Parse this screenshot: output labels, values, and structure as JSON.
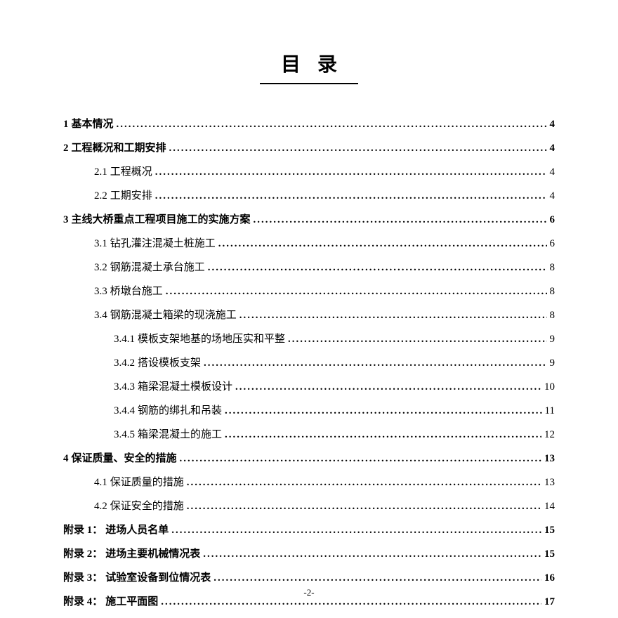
{
  "title": "目录",
  "pageFooter": "-2-",
  "leaderChar": ".",
  "toc": [
    {
      "level": 1,
      "num": "1",
      "text": "基本情况",
      "page": "4"
    },
    {
      "level": 1,
      "num": "2",
      "text": "工程概况和工期安排",
      "page": "4"
    },
    {
      "level": 2,
      "num": "2.1",
      "text": "工程概况",
      "page": "4"
    },
    {
      "level": 2,
      "num": "2.2",
      "text": "工期安排",
      "page": "4"
    },
    {
      "level": 1,
      "num": "3",
      "text": "主线大桥重点工程项目施工的实施方案",
      "page": "6"
    },
    {
      "level": 2,
      "num": "3.1",
      "text": "钻孔灌注混凝土桩施工",
      "page": "6"
    },
    {
      "level": 2,
      "num": "3.2",
      "text": "钢筋混凝土承台施工",
      "page": "8"
    },
    {
      "level": 2,
      "num": "3.3",
      "text": "桥墩台施工",
      "page": "8"
    },
    {
      "level": 2,
      "num": "3.4",
      "text": "钢筋混凝土箱梁的现浇施工",
      "page": "8"
    },
    {
      "level": 3,
      "num": "3.4.1",
      "text": "模板支架地基的场地压实和平整",
      "page": "9"
    },
    {
      "level": 3,
      "num": "3.4.2",
      "text": "搭设模板支架",
      "page": "9"
    },
    {
      "level": 3,
      "num": "3.4.3",
      "text": "箱梁混凝土模板设计",
      "page": "10"
    },
    {
      "level": 3,
      "num": "3.4.4",
      "text": "钢筋的绑扎和吊装",
      "page": "11"
    },
    {
      "level": 3,
      "num": "3.4.5",
      "text": "箱梁混凝土的施工",
      "page": "12"
    },
    {
      "level": 1,
      "num": "4",
      "text": "保证质量、安全的措施",
      "page": "13"
    },
    {
      "level": 2,
      "num": "4.1",
      "text": "保证质量的措施",
      "page": "13"
    },
    {
      "level": 2,
      "num": "4.2",
      "text": "保证安全的措施",
      "page": "14"
    },
    {
      "level": 1,
      "num": "附录 1：",
      "text": "进场人员名单",
      "page": "15"
    },
    {
      "level": 1,
      "num": "附录 2：",
      "text": "进场主要机械情况表",
      "page": "15"
    },
    {
      "level": 1,
      "num": "附录 3：",
      "text": "试验室设备到位情况表",
      "page": "16"
    },
    {
      "level": 1,
      "num": "附录 4：",
      "text": "施工平面图",
      "page": "17"
    }
  ]
}
